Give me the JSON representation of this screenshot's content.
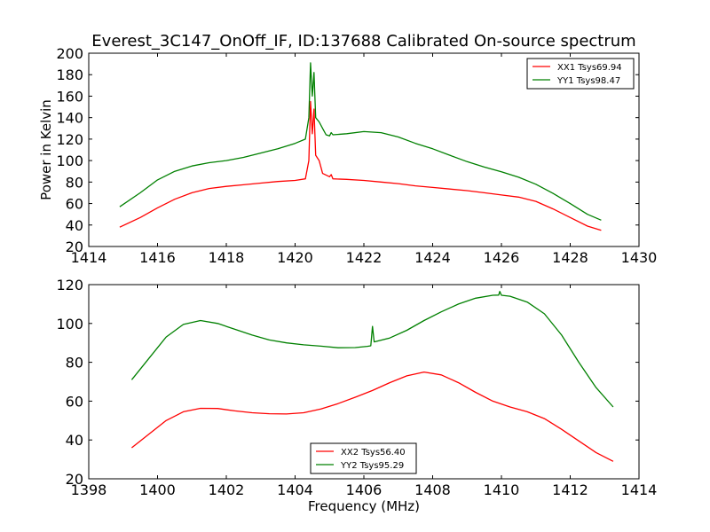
{
  "chart_data": [
    {
      "type": "line",
      "title": "Everest_3C147_OnOff_IF, ID:137688 Calibrated On-source spectrum",
      "xlabel": "",
      "ylabel": "Power in Kelvin",
      "xlim": [
        1414,
        1430
      ],
      "ylim": [
        20,
        200
      ],
      "xticks": [
        "1414",
        "1416",
        "1418",
        "1420",
        "1422",
        "1424",
        "1426",
        "1428",
        "1430"
      ],
      "yticks": [
        "20",
        "40",
        "60",
        "80",
        "100",
        "120",
        "140",
        "160",
        "180",
        "200"
      ],
      "legend_position": "top-right",
      "grid": false,
      "series": [
        {
          "name": "XX1 Tsys69.94",
          "color": "#ff0000",
          "x": [
            1414.9,
            1415.5,
            1416,
            1416.5,
            1417,
            1417.5,
            1418,
            1418.5,
            1419,
            1419.5,
            1420,
            1420.3,
            1420.4,
            1420.45,
            1420.5,
            1420.55,
            1420.6,
            1420.7,
            1420.8,
            1421,
            1421.05,
            1421.1,
            1421.5,
            1422,
            1422.5,
            1423,
            1423.5,
            1424,
            1424.5,
            1425,
            1425.5,
            1426,
            1426.5,
            1427,
            1427.5,
            1428,
            1428.5,
            1428.9
          ],
          "y": [
            38,
            47,
            56,
            64,
            70,
            74,
            76,
            77.5,
            79,
            80.5,
            81.5,
            83,
            100,
            155,
            125,
            148,
            105,
            100,
            88,
            85,
            87,
            83,
            82.5,
            81.5,
            80,
            78.5,
            76.5,
            75,
            73.5,
            72,
            70,
            68,
            66,
            62,
            55,
            47,
            39,
            35
          ]
        },
        {
          "name": "YY1 Tsys98.47",
          "color": "#008000",
          "x": [
            1414.9,
            1415.5,
            1416,
            1416.5,
            1417,
            1417.5,
            1418,
            1418.5,
            1419,
            1419.5,
            1420,
            1420.3,
            1420.4,
            1420.45,
            1420.5,
            1420.55,
            1420.6,
            1420.7,
            1420.8,
            1420.9,
            1421,
            1421.05,
            1421.1,
            1421.5,
            1422,
            1422.5,
            1423,
            1423.5,
            1424,
            1424.5,
            1425,
            1425.5,
            1426,
            1426.5,
            1427,
            1427.5,
            1428,
            1428.5,
            1428.9
          ],
          "y": [
            57,
            70,
            82,
            90,
            95,
            98,
            100,
            103,
            107,
            111,
            116,
            120,
            140,
            191,
            160,
            182,
            140,
            136,
            130,
            124,
            123,
            126,
            124,
            125,
            127,
            126,
            122,
            116,
            111,
            105,
            99,
            94,
            89.5,
            84.5,
            78,
            69.5,
            60,
            50,
            44.5
          ]
        }
      ]
    },
    {
      "type": "line",
      "title": "",
      "xlabel": "Frequency (MHz)",
      "ylabel": "",
      "xlim": [
        1398,
        1414
      ],
      "ylim": [
        20,
        120
      ],
      "xticks": [
        "1398",
        "1400",
        "1402",
        "1404",
        "1406",
        "1408",
        "1410",
        "1412",
        "1414"
      ],
      "yticks": [
        "20",
        "40",
        "60",
        "80",
        "100",
        "120"
      ],
      "legend_position": "bottom-center",
      "grid": false,
      "series": [
        {
          "name": "XX2 Tsys56.40",
          "color": "#ff0000",
          "x": [
            1399.25,
            1399.75,
            1400.25,
            1400.75,
            1401.25,
            1401.75,
            1402.25,
            1402.75,
            1403.25,
            1403.75,
            1404.25,
            1404.75,
            1405.25,
            1405.75,
            1406.25,
            1406.75,
            1407.25,
            1407.75,
            1408.25,
            1408.75,
            1409.25,
            1409.75,
            1410.25,
            1410.75,
            1411.25,
            1411.75,
            1412.25,
            1412.75,
            1413.25
          ],
          "y": [
            36,
            43,
            50,
            54.5,
            56.3,
            56.2,
            55,
            54,
            53.5,
            53.4,
            54,
            56,
            58.7,
            62,
            65.5,
            69.5,
            73,
            75,
            73.5,
            69.5,
            64.5,
            60,
            57,
            54.5,
            51,
            45.5,
            39.5,
            33.5,
            29
          ]
        },
        {
          "name": "YY2 Tsys95.29",
          "color": "#008000",
          "x": [
            1399.25,
            1399.75,
            1400.25,
            1400.75,
            1401.25,
            1401.75,
            1402.25,
            1402.75,
            1403.25,
            1403.75,
            1404.25,
            1404.75,
            1405.25,
            1405.75,
            1406.1,
            1406.2,
            1406.25,
            1406.3,
            1406.75,
            1407.25,
            1407.75,
            1408.25,
            1408.75,
            1409.25,
            1409.75,
            1409.92,
            1409.95,
            1410,
            1410.25,
            1410.75,
            1411.25,
            1411.75,
            1412.25,
            1412.75,
            1413.25
          ],
          "y": [
            71,
            82,
            93,
            99.5,
            101.5,
            100,
            97,
            94,
            91.5,
            90,
            89,
            88.3,
            87.5,
            87.6,
            88.2,
            88.5,
            98.5,
            90.5,
            92.5,
            96.5,
            101.5,
            106,
            110,
            113,
            114.5,
            114.6,
            116.5,
            114.5,
            114,
            111,
            105,
            94,
            80,
            67,
            57
          ]
        }
      ]
    }
  ]
}
